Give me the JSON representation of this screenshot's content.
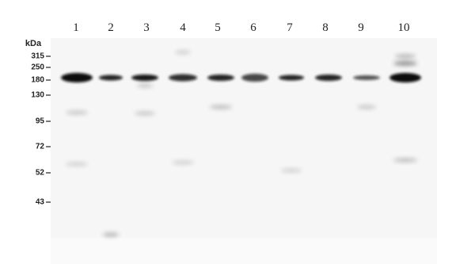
{
  "lanes": [
    "1",
    "2",
    "3",
    "4",
    "5",
    "6",
    "7",
    "8",
    "9",
    "10"
  ],
  "marker_unit": "kDa",
  "markers": [
    "315",
    "250",
    "180",
    "130",
    "95",
    "72",
    "52",
    "43"
  ]
}
